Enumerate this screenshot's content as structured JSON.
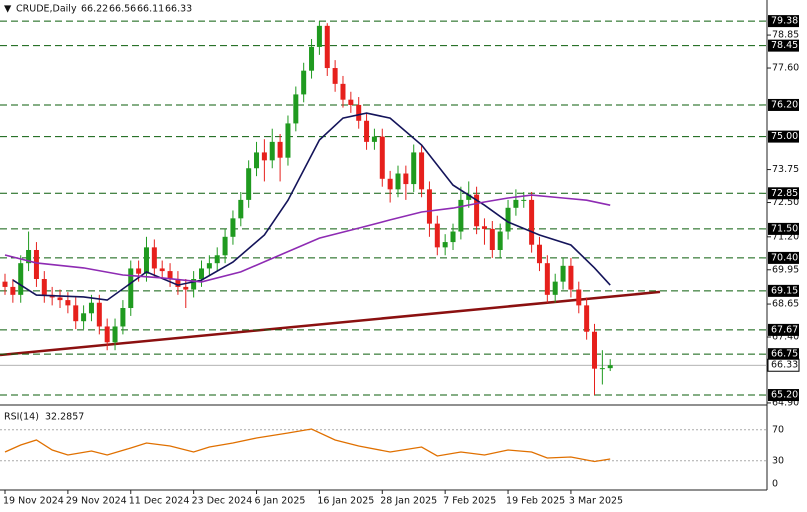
{
  "chart_data": {
    "type": "candlestick",
    "symbol": "CRUDE,Daily",
    "ylim": [
      64.86,
      80.18
    ],
    "yticks": [
      78.85,
      {
        "value": 77.6,
        "label": "77.60"
      },
      73.75,
      {
        "value": 72.5,
        "label": "72.50"
      },
      {
        "value": 71.2,
        "label": "71.20"
      },
      69.95,
      68.65,
      {
        "value": 67.4,
        "label": "67.40"
      },
      {
        "value": 64.9,
        "label": "64.90"
      }
    ],
    "levels": [
      79.38,
      78.45,
      {
        "value": 76.2,
        "label": "76.20"
      },
      {
        "value": 75,
        "label": "75.00"
      },
      72.85,
      {
        "value": 71.5,
        "label": "71.50"
      },
      {
        "value": 70.4,
        "label": "70.40"
      },
      69.15,
      67.67,
      66.75,
      {
        "value": 65.2,
        "label": "65.20"
      }
    ],
    "level_color": "#0b5e0b",
    "colors": {
      "up": "#1f9a1f",
      "down": "#e6201c"
    },
    "candles": {
      "open": [
        69.5,
        69.3,
        69.0,
        70.2,
        70.7,
        69.6,
        69.0,
        68.9,
        68.8,
        68.6,
        68.0,
        68.3,
        68.7,
        67.8,
        67.2,
        67.8,
        68.5,
        70.0,
        69.8,
        70.8,
        70.0,
        69.9,
        69.6,
        69.3,
        69.2,
        69.6,
        70.0,
        70.2,
        70.5,
        71.2,
        71.9,
        72.6,
        73.8,
        74.4,
        74.1,
        74.8,
        74.2,
        75.5,
        76.6,
        77.5,
        78.4,
        79.2,
        77.6,
        77.0,
        76.4,
        76.2,
        75.6,
        74.8,
        75.0,
        73.4,
        73.0,
        73.6,
        73.2,
        74.4,
        73.0,
        71.7,
        70.8,
        71.0,
        71.4,
        72.6,
        72.8,
        71.6,
        71.5,
        70.7,
        71.4,
        72.3,
        72.6,
        72.6,
        70.9,
        70.2,
        69.0,
        69.5,
        70.1,
        69.2,
        68.6,
        67.6,
        66.2,
        66.22
      ],
      "high": [
        69.8,
        69.6,
        70.5,
        71.4,
        71.0,
        69.9,
        69.3,
        69.2,
        69.1,
        68.9,
        68.6,
        69.0,
        69.0,
        68.1,
        68.1,
        68.8,
        70.3,
        70.3,
        71.2,
        71.1,
        70.3,
        70.2,
        69.9,
        69.6,
        69.9,
        70.3,
        70.5,
        70.8,
        71.5,
        72.2,
        72.9,
        74.1,
        74.8,
        74.9,
        75.3,
        75.1,
        75.8,
        76.9,
        77.8,
        78.7,
        79.38,
        79.3,
        77.9,
        77.3,
        76.7,
        76.5,
        75.9,
        75.3,
        75.3,
        73.7,
        73.9,
        73.9,
        74.7,
        74.7,
        73.3,
        72.0,
        71.3,
        71.7,
        73.1,
        73.3,
        73.1,
        71.9,
        71.8,
        71.7,
        72.6,
        73.0,
        72.9,
        72.9,
        71.2,
        70.5,
        69.8,
        70.4,
        70.4,
        69.5,
        68.9,
        67.9,
        66.9,
        66.56
      ],
      "low": [
        69.0,
        68.7,
        68.7,
        69.9,
        69.3,
        68.7,
        68.6,
        68.5,
        68.3,
        67.7,
        67.7,
        68.0,
        67.5,
        66.9,
        66.9,
        67.5,
        68.2,
        69.5,
        69.5,
        69.7,
        69.6,
        69.3,
        69.0,
        68.5,
        68.9,
        69.3,
        69.7,
        69.9,
        70.2,
        70.9,
        71.6,
        72.3,
        73.5,
        73.3,
        73.8,
        73.3,
        73.9,
        75.2,
        76.3,
        77.2,
        78.1,
        77.3,
        76.7,
        76.1,
        75.9,
        75.3,
        74.5,
        74.5,
        73.1,
        72.5,
        72.7,
        72.6,
        72.9,
        72.7,
        71.2,
        70.5,
        70.5,
        70.7,
        71.1,
        72.3,
        71.3,
        70.9,
        70.4,
        70.4,
        71.1,
        72.0,
        72.3,
        70.6,
        69.9,
        68.7,
        68.7,
        69.2,
        68.9,
        68.3,
        67.3,
        65.2,
        65.6,
        66.11
      ],
      "close": [
        69.3,
        69.0,
        70.2,
        70.7,
        69.6,
        69.0,
        68.9,
        68.8,
        68.6,
        68.0,
        68.3,
        68.7,
        67.8,
        67.2,
        67.8,
        68.5,
        70.0,
        69.8,
        70.8,
        70.0,
        69.9,
        69.6,
        69.3,
        69.2,
        69.6,
        70.0,
        70.2,
        70.5,
        71.2,
        71.9,
        72.6,
        73.8,
        74.4,
        74.1,
        74.8,
        74.2,
        75.5,
        76.6,
        77.5,
        78.4,
        79.2,
        77.6,
        77.0,
        76.4,
        76.2,
        75.6,
        74.8,
        75.0,
        73.4,
        73.0,
        73.6,
        73.2,
        74.4,
        73.0,
        71.7,
        70.8,
        71.0,
        71.4,
        72.6,
        72.8,
        71.6,
        71.5,
        70.7,
        71.4,
        72.3,
        72.6,
        72.6,
        70.9,
        70.2,
        69.0,
        69.5,
        70.1,
        69.2,
        68.6,
        67.6,
        66.2,
        66.22,
        66.33
      ]
    },
    "ma": [
      {
        "color": "#14145a",
        "x": [
          1,
          4,
          10,
          13,
          18,
          22,
          25,
          29,
          33,
          36,
          40,
          43,
          46,
          49,
          53,
          57,
          61,
          64,
          68,
          72,
          75,
          77
        ],
        "values": [
          69.56,
          68.99,
          68.92,
          68.8,
          69.87,
          69.37,
          69.56,
          70.24,
          71.27,
          72.59,
          74.87,
          75.7,
          75.89,
          75.7,
          74.68,
          73.16,
          72.4,
          71.76,
          71.27,
          70.89,
          70.02,
          69.37
        ]
      },
      {
        "color": "#8e2bb3",
        "x": [
          0,
          4,
          10,
          15,
          20,
          25,
          30,
          35,
          40,
          45,
          49,
          53,
          57,
          61,
          64,
          67,
          71,
          74,
          77
        ],
        "values": [
          70.51,
          70.21,
          70.02,
          69.75,
          69.64,
          69.49,
          69.87,
          70.51,
          71.15,
          71.53,
          71.84,
          72.14,
          72.29,
          72.52,
          72.67,
          72.78,
          72.67,
          72.59,
          72.4
        ]
      }
    ],
    "trendline": {
      "color": "#8b1010",
      "values": [
        66.72,
        69.11
      ]
    },
    "xticks": [
      {
        "value": 0,
        "label": "19 Nov 2024"
      },
      {
        "value": 8,
        "label": "29 Nov 2024"
      },
      {
        "value": 16,
        "label": "11 Dec 2024"
      },
      {
        "value": 24,
        "label": "23 Dec 2024"
      },
      {
        "value": 32,
        "label": "6 Jan 2025"
      },
      {
        "value": 40,
        "label": "16 Jan 2025"
      },
      {
        "value": 48,
        "label": "28 Jan 2025"
      },
      {
        "value": 56,
        "label": "7 Feb 2025"
      },
      {
        "value": 64,
        "label": "19 Feb 2025"
      },
      {
        "value": 72,
        "label": "3 Mar 2025"
      }
    ],
    "rsi": {
      "label": "RSI(14)",
      "value": 32.2857,
      "color": "#e07000",
      "ylim": [
        0,
        100
      ],
      "yticks": [
        70,
        30,
        0
      ],
      "x": [
        0,
        2,
        4,
        6,
        8,
        11,
        13,
        16,
        18,
        21,
        24,
        26,
        29,
        32,
        36,
        39,
        42,
        45,
        49,
        53,
        55,
        58,
        61,
        64,
        67,
        69,
        72,
        75,
        77
      ],
      "values": [
        41.3,
        50.3,
        56.8,
        43.9,
        37.4,
        42.6,
        37.4,
        46.5,
        52.9,
        49,
        41.3,
        47.7,
        52.9,
        59.4,
        65.8,
        71,
        56.8,
        49,
        41.3,
        47.7,
        36.1,
        41.3,
        37.4,
        43.9,
        41.3,
        33.5,
        34.8,
        29,
        32.2857
      ]
    }
  }
}
